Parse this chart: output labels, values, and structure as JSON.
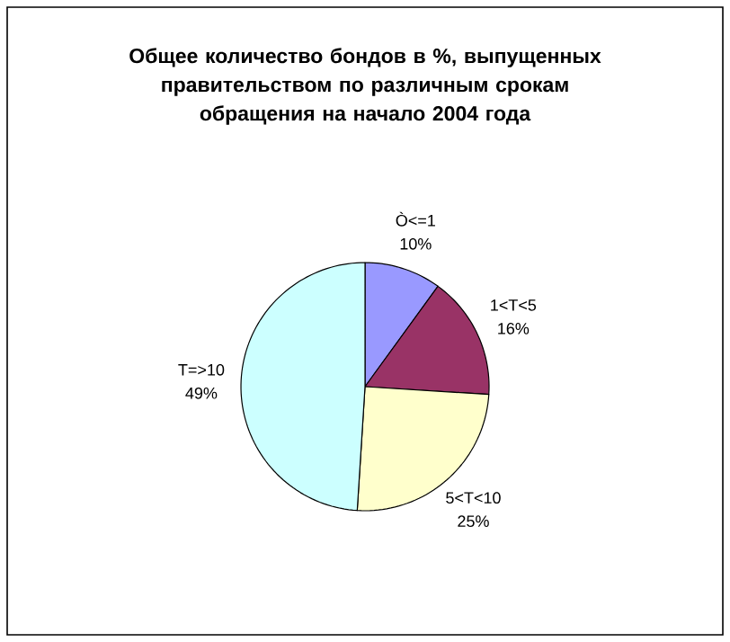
{
  "chart_data": {
    "type": "pie",
    "title": "Общее количество бондов в %, выпущенных правительством по различным срокам обращения на начало 2004 года",
    "categories": [
      "Ò<=1",
      "1<T<5",
      "5<T<10",
      "T=>10"
    ],
    "values": [
      10,
      16,
      25,
      49
    ],
    "value_labels": [
      "10%",
      "16%",
      "25%",
      "49%"
    ],
    "colors": [
      "#9999ff",
      "#993366",
      "#ffffcc",
      "#ccffff"
    ]
  }
}
